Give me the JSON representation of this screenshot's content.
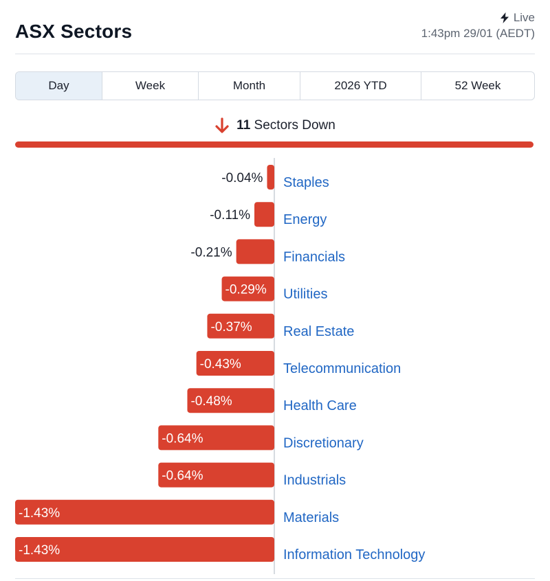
{
  "header": {
    "title": "ASX Sectors",
    "live_label": "Live",
    "timestamp": "1:43pm 29/01 (AEDT)"
  },
  "tabs": [
    {
      "label": "Day",
      "active": true
    },
    {
      "label": "Week",
      "active": false
    },
    {
      "label": "Month",
      "active": false
    },
    {
      "label": "2026 YTD",
      "active": false
    },
    {
      "label": "52 Week",
      "active": false
    }
  ],
  "summary": {
    "count": "11",
    "text": "Sectors Down",
    "icon": "arrow-down-icon",
    "color": "#d9412f"
  },
  "colors": {
    "negative": "#d9412f",
    "label": "#2167c4",
    "axis": "#c9cfd6"
  },
  "chart_data": {
    "type": "bar",
    "orientation": "horizontal",
    "unit": "%",
    "categories": [
      "Staples",
      "Energy",
      "Financials",
      "Utilities",
      "Real Estate",
      "Telecommunication",
      "Health Care",
      "Discretionary",
      "Industrials",
      "Materials",
      "Information Technology"
    ],
    "values": [
      -0.04,
      -0.11,
      -0.21,
      -0.29,
      -0.37,
      -0.43,
      -0.48,
      -0.64,
      -0.64,
      -1.43,
      -1.43
    ],
    "value_labels": [
      "-0.04%",
      "-0.11%",
      "-0.21%",
      "-0.29%",
      "-0.37%",
      "-0.43%",
      "-0.48%",
      "-0.64%",
      "-0.64%",
      "-1.43%",
      "-1.43%"
    ],
    "xlim": [
      -1.43,
      0
    ],
    "title": "",
    "xlabel": "",
    "ylabel": "",
    "grid": false,
    "legend": "none"
  }
}
